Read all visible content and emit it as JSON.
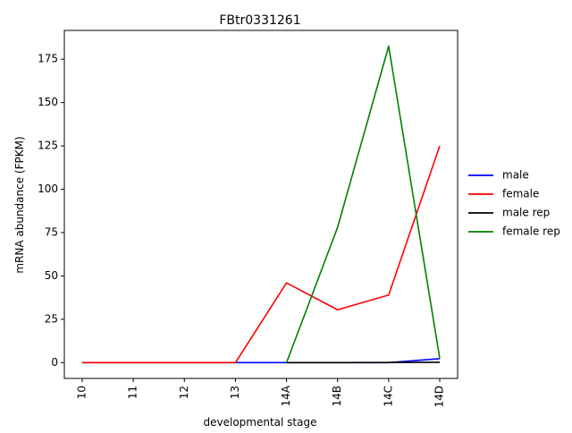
{
  "chart_data": {
    "type": "line",
    "title": "FBtr0331261",
    "xlabel": "developmental stage",
    "ylabel": "mRNA abundance (FPKM)",
    "categories": [
      "10",
      "11",
      "12",
      "13",
      "14A",
      "14B",
      "14C",
      "14D"
    ],
    "ylim": [
      -9.1,
      191.6
    ],
    "yticks": [
      0,
      25,
      50,
      75,
      100,
      125,
      150,
      175
    ],
    "grid": false,
    "legend_position": "right",
    "series": [
      {
        "name": "male",
        "color": "#0000ff",
        "values": [
          0,
          0,
          0,
          0,
          0,
          0,
          0,
          2.3
        ]
      },
      {
        "name": "female",
        "color": "#ff0000",
        "values": [
          0,
          0,
          0,
          0,
          46,
          30.5,
          39,
          125
        ]
      },
      {
        "name": "male rep",
        "color": "#000000",
        "values": [
          null,
          null,
          null,
          null,
          0,
          0,
          0.1,
          0.2
        ]
      },
      {
        "name": "female rep",
        "color": "#008000",
        "values": [
          null,
          null,
          null,
          null,
          0,
          78,
          182.5,
          2.5
        ]
      }
    ]
  }
}
